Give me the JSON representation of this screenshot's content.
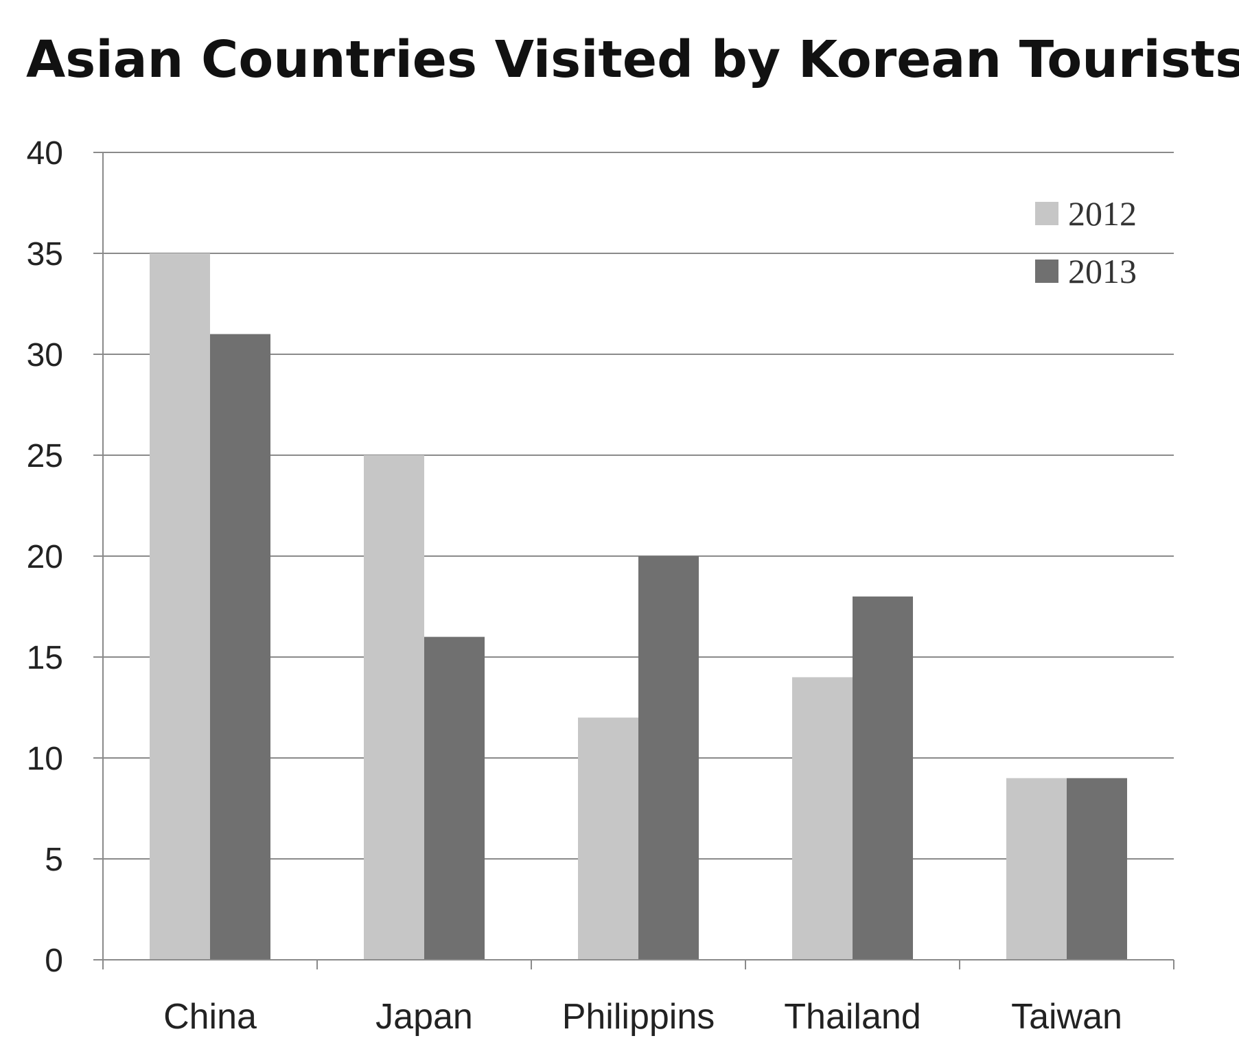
{
  "chart_data": {
    "type": "bar",
    "title": "Asian Countries Visited by Korean Tourists",
    "title_unit": "(%)",
    "categories": [
      "China",
      "Japan",
      "Philippins",
      "Thailand",
      "Taiwan"
    ],
    "series": [
      {
        "name": "2012",
        "values": [
          35,
          25,
          12,
          14,
          9
        ],
        "color": "#c6c6c6"
      },
      {
        "name": "2013",
        "values": [
          31,
          16,
          20,
          18,
          9
        ],
        "color": "#707070"
      }
    ],
    "y_ticks": [
      "0",
      "5",
      "10",
      "15",
      "20",
      "25",
      "30",
      "35",
      "40"
    ],
    "ylim": [
      0,
      40
    ],
    "grid": true,
    "legend_position": "top-right"
  }
}
